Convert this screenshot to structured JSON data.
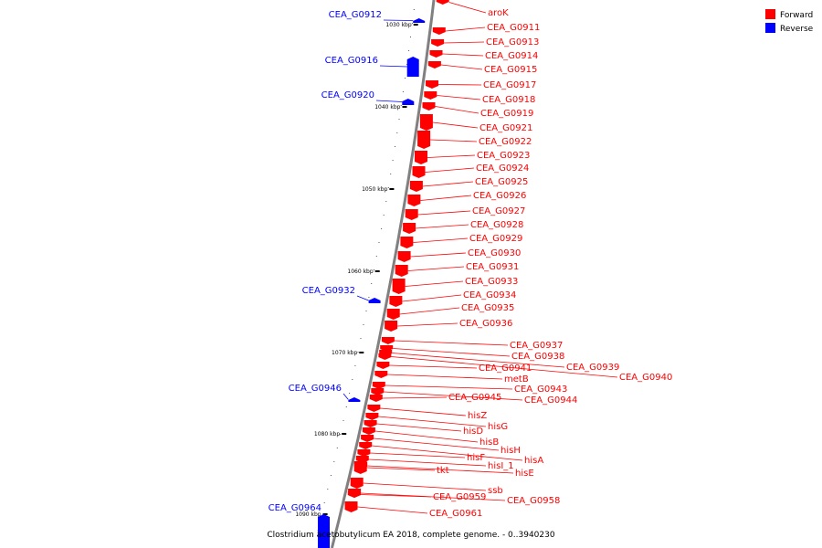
{
  "caption": "Clostridium acetobutylicum EA 2018, complete genome. - 0..3940230",
  "legend": [
    {
      "label": "Forward",
      "color": "#ff0000"
    },
    {
      "label": "Reverse",
      "color": "#0000ff"
    }
  ],
  "colors": {
    "forward": "#ff0000",
    "reverse": "#0000ff",
    "backbone": "#808080"
  },
  "ticks": [
    "1030 kbp",
    "1040 kbp",
    "1050 kbp",
    "1060 kbp",
    "1070 kbp",
    "1080 kbp",
    "1090 kbp"
  ],
  "forward_genes": [
    "aroK",
    "CEA_G0911",
    "CEA_G0913",
    "CEA_G0914",
    "CEA_G0915",
    "CEA_G0917",
    "CEA_G0918",
    "CEA_G0919",
    "CEA_G0921",
    "CEA_G0922",
    "CEA_G0923",
    "CEA_G0924",
    "CEA_G0925",
    "CEA_G0926",
    "CEA_G0927",
    "CEA_G0928",
    "CEA_G0929",
    "CEA_G0930",
    "CEA_G0931",
    "CEA_G0933",
    "CEA_G0934",
    "CEA_G0935",
    "CEA_G0936",
    "CEA_G0937",
    "CEA_G0938",
    "CEA_G0939",
    "CEA_G0940",
    "CEA_G0941",
    "metB",
    "CEA_G0943",
    "CEA_G0944",
    "CEA_G0945",
    "hisZ",
    "hisG",
    "hisD",
    "hisB",
    "hisH",
    "hisA",
    "hisF",
    "hisI_1",
    "hisE",
    "tkt",
    "ssb",
    "CEA_G0958",
    "CEA_G0959",
    "CEA_G0961"
  ],
  "reverse_genes": [
    "CEA_G0912",
    "CEA_G0916",
    "CEA_G0920",
    "CEA_G0932",
    "CEA_G0946",
    "CEA_G0964"
  ]
}
